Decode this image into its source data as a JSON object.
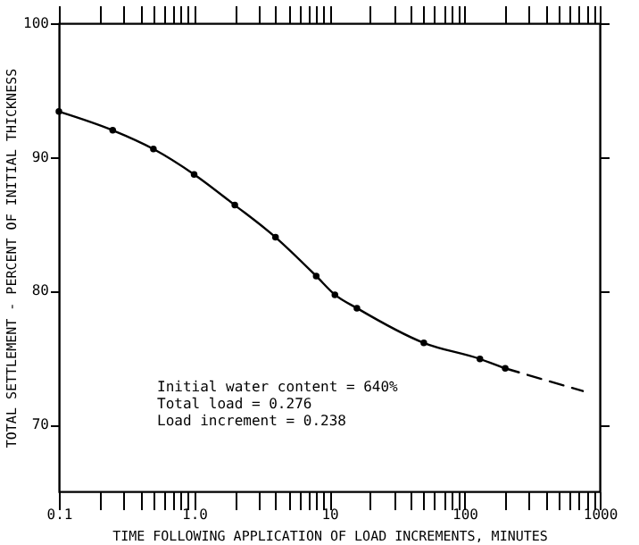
{
  "chart_data": {
    "type": "line",
    "xlabel": "TIME FOLLOWING APPLICATION OF LOAD INCREMENTS, MINUTES",
    "ylabel": "TOTAL SETTLEMENT - PERCENT OF INITIAL THICKNESS",
    "log": "x",
    "grid": false,
    "xlim": [
      0.1,
      1000
    ],
    "ylim": [
      65,
      100
    ],
    "xticks": [
      0.1,
      {
        "value": 0.2,
        "label": null
      },
      {
        "value": 0.3,
        "label": null
      },
      {
        "value": 0.4,
        "label": null
      },
      {
        "value": 0.5,
        "label": null
      },
      {
        "value": 0.6,
        "label": null
      },
      {
        "value": 0.7,
        "label": null
      },
      {
        "value": 0.8,
        "label": null
      },
      {
        "value": 0.9,
        "label": null
      },
      {
        "value": 1,
        "label": "1.0"
      },
      {
        "value": 2,
        "label": null
      },
      {
        "value": 3,
        "label": null
      },
      {
        "value": 4,
        "label": null
      },
      {
        "value": 5,
        "label": null
      },
      {
        "value": 6,
        "label": null
      },
      {
        "value": 7,
        "label": null
      },
      {
        "value": 8,
        "label": null
      },
      {
        "value": 9,
        "label": null
      },
      10,
      {
        "value": 20,
        "label": null
      },
      {
        "value": 30,
        "label": null
      },
      {
        "value": 40,
        "label": null
      },
      {
        "value": 50,
        "label": null
      },
      {
        "value": 60,
        "label": null
      },
      {
        "value": 70,
        "label": null
      },
      {
        "value": 80,
        "label": null
      },
      {
        "value": 90,
        "label": null
      },
      100,
      {
        "value": 200,
        "label": null
      },
      {
        "value": 300,
        "label": null
      },
      {
        "value": 400,
        "label": null
      },
      {
        "value": 500,
        "label": null
      },
      {
        "value": 600,
        "label": null
      },
      {
        "value": 700,
        "label": null
      },
      {
        "value": 800,
        "label": null
      },
      {
        "value": 900,
        "label": null
      },
      1000
    ],
    "yticks": [
      70,
      80,
      90,
      100
    ],
    "series": [
      {
        "color": "#000000",
        "marker": "circle",
        "line_style": "solid",
        "x": [
          0.1,
          0.25,
          0.5,
          1,
          2,
          4,
          8,
          11,
          16,
          50,
          130,
          200
        ],
        "values": [
          93.4,
          92.0,
          90.6,
          88.7,
          86.4,
          84.0,
          81.1,
          79.7,
          78.7,
          76.1,
          74.9,
          74.2
        ]
      },
      {
        "color": "#000000",
        "marker": "none",
        "line_style": "dashed",
        "x": [
          200,
          750
        ],
        "values": [
          74.2,
          72.5
        ]
      }
    ],
    "annotations": [
      "Initial water content = 640%",
      "Total load = 0.276",
      "Load increment = 0.238"
    ]
  }
}
